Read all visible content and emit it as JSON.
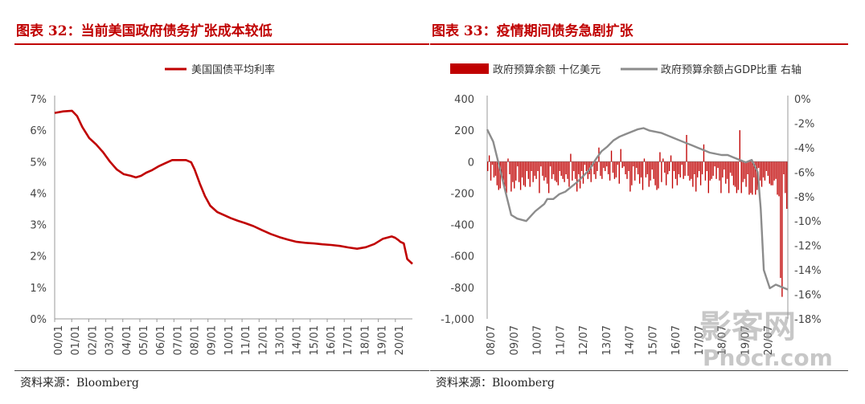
{
  "left": {
    "title": "图表 32：当前美国政府债务扩张成本较低",
    "source": "资料来源：Bloomberg"
  },
  "right": {
    "title": "图表 33：疫情期间债务急剧扩张",
    "source": "资料来源：Bloomberg"
  },
  "watermark": {
    "main": "影客网",
    "sub": "Phocr.com"
  },
  "colors": {
    "red": "#c00000",
    "gray": "#8c8c8c",
    "axis": "#999999"
  },
  "chart_data": [
    {
      "type": "line",
      "legend": "美国国债平均利率",
      "legend_position": "top-center",
      "grid": false,
      "y_ticks": [
        "0%",
        "1%",
        "2%",
        "3%",
        "4%",
        "5%",
        "6%",
        "7%"
      ],
      "ylim": [
        0,
        7
      ],
      "x_ticks": [
        "00/01",
        "01/01",
        "02/01",
        "03/01",
        "04/01",
        "05/01",
        "06/01",
        "07/01",
        "08/01",
        "09/01",
        "10/01",
        "11/01",
        "12/01",
        "13/01",
        "14/01",
        "15/01",
        "16/01",
        "17/01",
        "18/01",
        "19/01",
        "20/01"
      ],
      "xlim": [
        2000.0,
        2020.7
      ],
      "series": [
        {
          "x": [
            2000.0,
            2000.5,
            2001.0,
            2001.3,
            2001.6,
            2002.0,
            2002.4,
            2002.8,
            2003.2,
            2003.6,
            2004.0,
            2004.4,
            2004.7,
            2005.0,
            2005.3,
            2005.6,
            2006.0,
            2006.4,
            2006.8,
            2007.2,
            2007.6,
            2007.9,
            2008.1,
            2008.4,
            2008.7,
            2009.0,
            2009.4,
            2009.8,
            2010.2,
            2010.6,
            2011.0,
            2011.5,
            2012.0,
            2012.5,
            2013.0,
            2013.5,
            2014.0,
            2014.5,
            2015.0,
            2015.5,
            2016.0,
            2016.5,
            2017.0,
            2017.5,
            2018.0,
            2018.5,
            2019.0,
            2019.5,
            2019.7,
            2019.9,
            2020.0,
            2020.2,
            2020.4,
            2020.7
          ],
          "y": [
            6.55,
            6.6,
            6.62,
            6.45,
            6.1,
            5.75,
            5.55,
            5.3,
            5.0,
            4.75,
            4.6,
            4.55,
            4.5,
            4.55,
            4.65,
            4.72,
            4.85,
            4.95,
            5.05,
            5.05,
            5.05,
            4.98,
            4.75,
            4.3,
            3.9,
            3.6,
            3.4,
            3.3,
            3.2,
            3.12,
            3.05,
            2.95,
            2.82,
            2.7,
            2.6,
            2.52,
            2.45,
            2.42,
            2.4,
            2.37,
            2.35,
            2.32,
            2.27,
            2.23,
            2.28,
            2.38,
            2.55,
            2.62,
            2.58,
            2.5,
            2.45,
            2.4,
            1.9,
            1.75
          ]
        }
      ]
    },
    {
      "type": "bar+line",
      "legend_position": "top",
      "grid": false,
      "y_left_ticks": [
        "400",
        "200",
        "0",
        "-200",
        "-400",
        "-600",
        "-800",
        "-1,000"
      ],
      "ylim_left": [
        -1000,
        400
      ],
      "y_right_ticks": [
        "0%",
        "-2%",
        "-4%",
        "-6%",
        "-8%",
        "-10%",
        "-12%",
        "-14%",
        "-16%",
        "-18%"
      ],
      "ylim_right": [
        -18,
        0
      ],
      "x_ticks": [
        "08/07",
        "09/07",
        "10/07",
        "11/07",
        "12/07",
        "13/07",
        "14/07",
        "15/07",
        "16/07",
        "17/07",
        "18/07",
        "19/07",
        "20/07"
      ],
      "series": [
        {
          "name": "政府预算余额 十亿美元",
          "axis": "left",
          "kind": "bar",
          "values": [
            -60,
            40,
            -120,
            -20,
            -100,
            -90,
            -150,
            -180,
            -170,
            -90,
            -120,
            -160,
            -200,
            20,
            -80,
            -190,
            -130,
            -170,
            -120,
            -30,
            -130,
            -180,
            -100,
            -150,
            -160,
            -60,
            -110,
            -160,
            -60,
            -130,
            -90,
            -110,
            -60,
            -200,
            -30,
            -90,
            -120,
            -100,
            -140,
            -200,
            -30,
            -110,
            -80,
            -120,
            -130,
            -150,
            -60,
            -90,
            -110,
            -130,
            -80,
            -110,
            -160,
            50,
            -120,
            -60,
            -110,
            -190,
            -80,
            -170,
            -60,
            -140,
            -20,
            -60,
            -110,
            -80,
            -130,
            -30,
            -80,
            -110,
            -60,
            90,
            -90,
            -110,
            -40,
            -60,
            -30,
            -80,
            -120,
            70,
            -70,
            -110,
            -100,
            -20,
            -140,
            80,
            -40,
            -30,
            -80,
            -110,
            -60,
            -190,
            -150,
            -30,
            -120,
            -40,
            -80,
            -140,
            -100,
            -180,
            20,
            -100,
            -80,
            -160,
            -120,
            -50,
            -110,
            -150,
            -180,
            -170,
            60,
            -130,
            20,
            -70,
            -150,
            -80,
            -60,
            40,
            -170,
            -60,
            -110,
            -150,
            -80,
            -100,
            -20,
            -110,
            -90,
            170,
            -90,
            -120,
            -110,
            -160,
            -80,
            -190,
            -100,
            -60,
            -150,
            -80,
            110,
            -120,
            -60,
            -200,
            -120,
            -110,
            -90,
            -30,
            -110,
            -40,
            -120,
            -200,
            -100,
            -50,
            -140,
            -110,
            -200,
            -70,
            -90,
            -150,
            -160,
            -200,
            -180,
            200,
            -200,
            -130,
            -110,
            -160,
            -80,
            -210,
            -200,
            -210,
            -100,
            -210,
            -180,
            -40,
            -120,
            -160,
            -100,
            -120,
            -60,
            -90,
            -140,
            -150,
            -150,
            -120,
            -110,
            -210,
            -220,
            -740,
            -860,
            -80,
            -200,
            -300
          ]
        },
        {
          "name": "政府预算余额占GDP比重 右轴",
          "axis": "right",
          "kind": "line",
          "x_frac": [
            0.0,
            0.02,
            0.04,
            0.06,
            0.08,
            0.1,
            0.13,
            0.16,
            0.19,
            0.2,
            0.22,
            0.24,
            0.26,
            0.28,
            0.3,
            0.32,
            0.34,
            0.36,
            0.38,
            0.4,
            0.42,
            0.44,
            0.46,
            0.48,
            0.5,
            0.52,
            0.54,
            0.56,
            0.58,
            0.6,
            0.62,
            0.64,
            0.66,
            0.68,
            0.7,
            0.72,
            0.74,
            0.76,
            0.78,
            0.8,
            0.82,
            0.84,
            0.86,
            0.88,
            0.9,
            0.91,
            0.92,
            0.94,
            0.96,
            1.0
          ],
          "values": [
            -2.5,
            -3.5,
            -5.5,
            -7.5,
            -9.5,
            -9.8,
            -10.0,
            -9.2,
            -8.6,
            -8.2,
            -8.2,
            -7.8,
            -7.6,
            -7.2,
            -6.8,
            -6.3,
            -5.8,
            -5.0,
            -4.3,
            -3.9,
            -3.4,
            -3.1,
            -2.9,
            -2.7,
            -2.5,
            -2.4,
            -2.6,
            -2.7,
            -2.8,
            -3.0,
            -3.2,
            -3.4,
            -3.6,
            -3.8,
            -4.0,
            -4.2,
            -4.4,
            -4.5,
            -4.6,
            -4.6,
            -4.8,
            -5.0,
            -5.2,
            -5.0,
            -6.0,
            -9.0,
            -14.0,
            -15.5,
            -15.2,
            -15.6
          ]
        }
      ]
    }
  ]
}
